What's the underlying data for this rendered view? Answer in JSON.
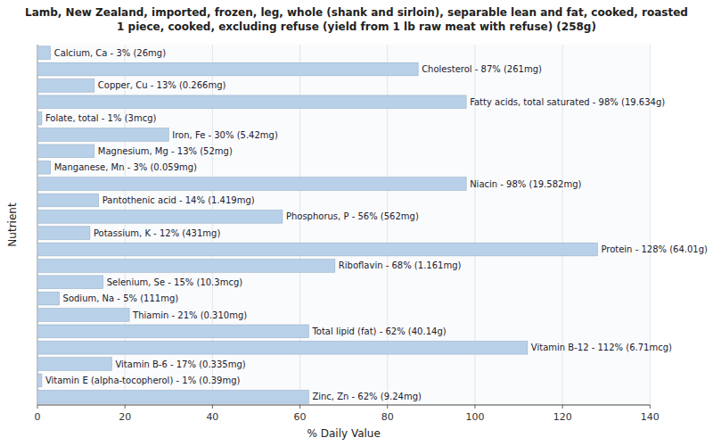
{
  "chart_data": {
    "type": "bar",
    "orientation": "horizontal",
    "title": "Lamb, New Zealand, imported, frozen, leg, whole (shank and sirloin), separable lean and fat, cooked, roasted\n1 piece, cooked, excluding refuse (yield from 1 lb raw meat with refuse) (258g)",
    "x_label": "% Daily Value",
    "y_label": "Nutrient",
    "categories": [
      "Calcium, Ca - 3% (26mg)",
      "Cholesterol - 87% (261mg)",
      "Copper, Cu - 13% (0.266mg)",
      "Fatty acids, total saturated - 98% (19.634g)",
      "Folate, total - 1% (3mcg)",
      "Iron, Fe - 30% (5.42mg)",
      "Magnesium, Mg - 13% (52mg)",
      "Manganese, Mn - 3% (0.059mg)",
      "Niacin - 98% (19.582mg)",
      "Pantothenic acid - 14% (1.419mg)",
      "Phosphorus, P - 56% (562mg)",
      "Potassium, K - 12% (431mg)",
      "Protein - 128% (64.01g)",
      "Riboflavin - 68% (1.161mg)",
      "Selenium, Se - 15% (10.3mcg)",
      "Sodium, Na - 5% (111mg)",
      "Thiamin - 21% (0.310mg)",
      "Total lipid (fat) - 62% (40.14g)",
      "Vitamin B-12 - 112% (6.71mcg)",
      "Vitamin B-6 - 17% (0.335mg)",
      "Vitamin E (alpha-tocopherol) - 1% (0.39mg)",
      "Zinc, Zn - 62% (9.24mg)"
    ],
    "values": [
      3,
      87,
      13,
      98,
      1,
      30,
      13,
      3,
      98,
      14,
      56,
      12,
      128,
      68,
      15,
      5,
      21,
      62,
      112,
      17,
      1,
      62
    ],
    "color": "#b8d0e8",
    "xlim": [
      0,
      140
    ],
    "xticks": [
      0,
      20,
      40,
      60,
      80,
      100,
      120,
      140
    ],
    "grid": true
  }
}
